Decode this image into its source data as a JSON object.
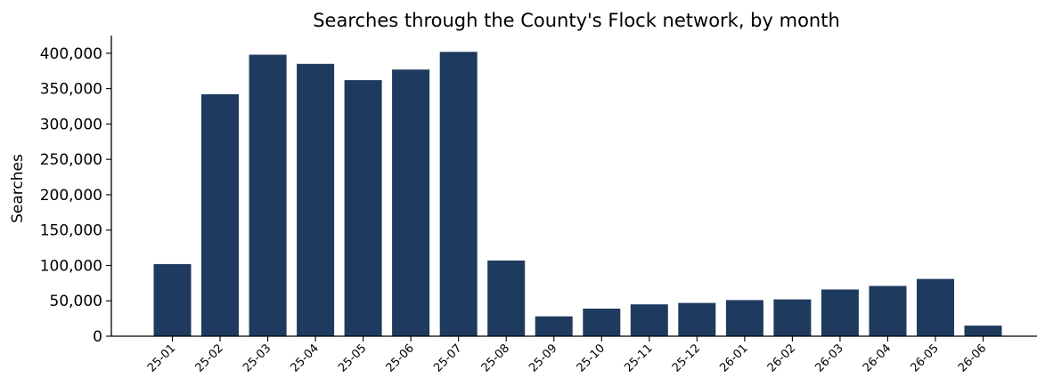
{
  "chart_data": {
    "type": "bar",
    "title": "Searches through the County's Flock network, by month",
    "xlabel": "",
    "ylabel": "Searches",
    "categories": [
      "25-01",
      "25-02",
      "25-03",
      "25-04",
      "25-05",
      "25-06",
      "25-07",
      "25-08",
      "25-09",
      "25-10",
      "25-11",
      "25-12",
      "26-01",
      "26-02",
      "26-03",
      "26-04",
      "26-05",
      "26-06"
    ],
    "values": [
      102000,
      342000,
      398000,
      385000,
      362000,
      377000,
      402000,
      107000,
      28000,
      39000,
      45000,
      47000,
      51000,
      52000,
      66000,
      71000,
      81000,
      15000
    ],
    "ylim": [
      0,
      425000
    ],
    "yticks": [
      0,
      50000,
      100000,
      150000,
      200000,
      250000,
      300000,
      350000,
      400000
    ],
    "ytick_labels": [
      "0",
      "50,000",
      "100,000",
      "150,000",
      "200,000",
      "250,000",
      "300,000",
      "350,000",
      "400,000"
    ],
    "grid": false,
    "bar_color": "#1f3a5f"
  }
}
